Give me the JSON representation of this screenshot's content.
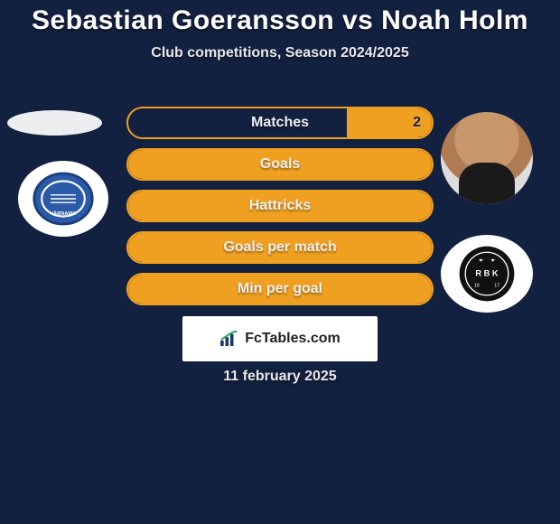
{
  "title": "Sebastian Goeransson vs Noah Holm",
  "subtitle": "Club competitions, Season 2024/2025",
  "date_footer": "11 february 2025",
  "brand_text": "FcTables.com",
  "colors": {
    "background": "#132140",
    "accent": "#f0a020",
    "text": "#ffffff"
  },
  "players": {
    "left": {
      "name": "Sebastian Goeransson",
      "club": "IFK Värnamo"
    },
    "right": {
      "name": "Noah Holm",
      "club": "Rosenborg BK"
    }
  },
  "stats": [
    {
      "label": "Matches",
      "left_value": null,
      "right_value": "2",
      "left_fill_pct": 0,
      "right_fill_pct": 28
    },
    {
      "label": "Goals",
      "left_value": null,
      "right_value": null,
      "left_fill_pct": 50,
      "right_fill_pct": 50
    },
    {
      "label": "Hattricks",
      "left_value": null,
      "right_value": null,
      "left_fill_pct": 50,
      "right_fill_pct": 50
    },
    {
      "label": "Goals per match",
      "left_value": null,
      "right_value": null,
      "left_fill_pct": 50,
      "right_fill_pct": 50
    },
    {
      "label": "Min per goal",
      "left_value": null,
      "right_value": null,
      "left_fill_pct": 50,
      "right_fill_pct": 50
    }
  ]
}
